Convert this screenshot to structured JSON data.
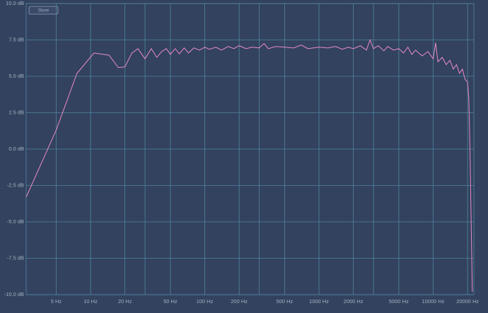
{
  "toolbar": {
    "button": "Store"
  },
  "chart_data": {
    "type": "line",
    "log_x": true,
    "grid": true,
    "xlim": [
      2.73,
      22700
    ],
    "ylim": [
      -10,
      10
    ],
    "xticks": [
      {
        "value": 5,
        "label": "5 Hz"
      },
      {
        "value": 10,
        "label": "10 Hz"
      },
      {
        "value": 20,
        "label": "20 Hz"
      },
      {
        "value": 50,
        "label": "50 Hz"
      },
      {
        "value": 100,
        "label": "100 Hz"
      },
      {
        "value": 200,
        "label": "200 Hz"
      },
      {
        "value": 500,
        "label": "500 Hz"
      },
      {
        "value": 1000,
        "label": "1000 Hz"
      },
      {
        "value": 2000,
        "label": "2000 Hz"
      },
      {
        "value": 5000,
        "label": "5000 Hz"
      },
      {
        "value": 10000,
        "label": "10000 Hz"
      },
      {
        "value": 20000,
        "label": "20000 Hz"
      }
    ],
    "x_minor_grid": [
      30,
      300,
      3000
    ],
    "yticks": [
      {
        "value": 10,
        "label": "10.0 dB"
      },
      {
        "value": 7.5,
        "label": "7.5 dB"
      },
      {
        "value": 5,
        "label": "5.0 dB"
      },
      {
        "value": 2.5,
        "label": "2.5 dB"
      },
      {
        "value": 0,
        "label": "0.0 dB"
      },
      {
        "value": -2.5,
        "label": "-2.5 dB"
      },
      {
        "value": -5,
        "label": "-5.0 dB"
      },
      {
        "value": -7.5,
        "label": "-7.5 dB"
      },
      {
        "value": -10,
        "label": "-10.0 dB"
      }
    ],
    "series": [
      {
        "color": "#ea8cc9",
        "x": [
          2.73,
          5,
          7.6,
          10.7,
          14.5,
          17.5,
          20,
          23,
          26,
          30,
          34,
          38,
          42,
          46,
          50,
          55,
          60,
          66,
          72,
          80,
          90,
          100,
          110,
          125,
          140,
          160,
          180,
          200,
          230,
          260,
          300,
          330,
          360,
          420,
          500,
          600,
          700,
          800,
          1000,
          1200,
          1400,
          1600,
          1800,
          2000,
          2300,
          2600,
          2800,
          3000,
          3300,
          3700,
          4000,
          4500,
          5000,
          5500,
          6000,
          6500,
          7000,
          8000,
          9000,
          10000,
          10500,
          11000,
          12000,
          13000,
          14000,
          15000,
          16000,
          17000,
          18000,
          19000,
          20000,
          20500,
          21000,
          21500,
          22000
        ],
        "values": [
          -3.3,
          1.3,
          5.2,
          6.6,
          6.45,
          5.6,
          5.65,
          6.6,
          6.9,
          6.2,
          6.9,
          6.3,
          6.7,
          6.9,
          6.5,
          6.9,
          6.55,
          6.95,
          6.6,
          6.95,
          6.8,
          7.0,
          6.85,
          7.0,
          6.8,
          7.05,
          6.9,
          7.1,
          6.9,
          7.0,
          6.95,
          7.25,
          6.9,
          7.05,
          7.0,
          6.95,
          7.15,
          6.9,
          7.0,
          6.95,
          7.05,
          6.85,
          7.0,
          6.9,
          7.1,
          6.8,
          7.5,
          6.9,
          7.1,
          6.75,
          7.05,
          6.8,
          6.9,
          6.6,
          7.0,
          6.5,
          6.8,
          6.4,
          6.7,
          6.2,
          7.3,
          6.0,
          6.3,
          5.8,
          6.1,
          5.5,
          5.8,
          5.2,
          5.5,
          4.8,
          4.6,
          3.5,
          0,
          -5,
          -9.8
        ]
      }
    ]
  }
}
